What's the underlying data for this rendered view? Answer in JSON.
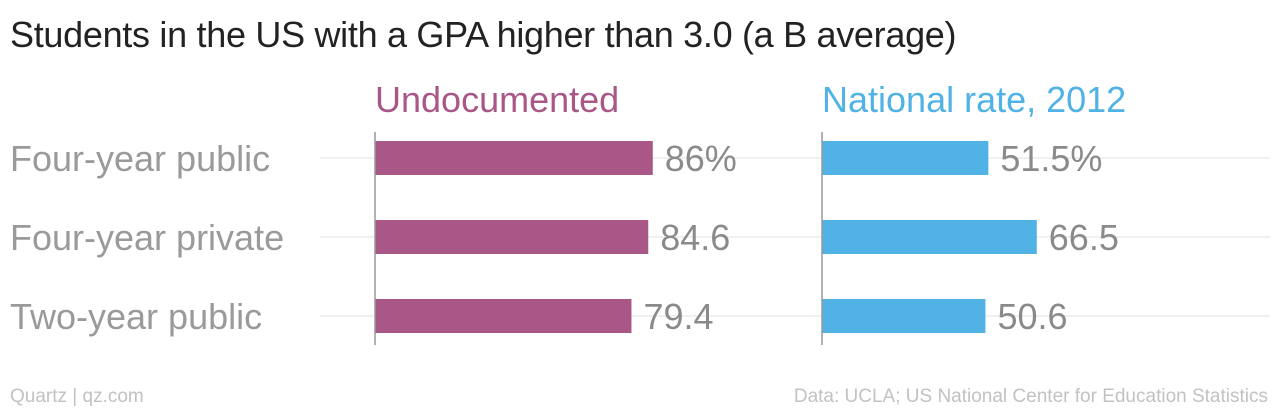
{
  "title": "Students in the US with a GPA higher than 3.0 (a B average)",
  "footer": {
    "credit": "Quartz | qz.com",
    "source": "Data: UCLA; US National Center for Education Statistics"
  },
  "colors": {
    "undocumented": "#a85787",
    "national": "#51b2e5",
    "category_text": "#9a9a9a",
    "value_text": "#8a8a8a",
    "grid": "#ebebeb",
    "axis": "#999999"
  },
  "chart_data": {
    "type": "bar",
    "orientation": "horizontal",
    "title": "Students in the US with a GPA higher than 3.0 (a B average)",
    "categories": [
      "Four-year public",
      "Four-year private",
      "Two-year public"
    ],
    "series": [
      {
        "name": "Undocumented",
        "values": [
          86,
          84.6,
          79.4
        ],
        "value_labels": [
          "86%",
          "84.6",
          "79.4"
        ]
      },
      {
        "name": "National rate, 2012",
        "values": [
          51.5,
          66.5,
          50.6
        ],
        "value_labels": [
          "51.5%",
          "66.5",
          "50.6"
        ]
      }
    ],
    "xlim": [
      0,
      100
    ],
    "grid": true,
    "legend": "panel headers"
  }
}
